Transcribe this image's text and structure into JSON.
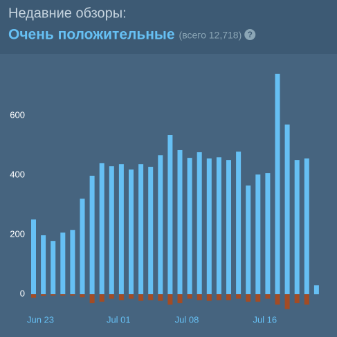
{
  "chart_data": {
    "type": "bar",
    "title": "Недавние обзоры:",
    "subtitle": "Очень положительные",
    "annotation": "(всего 12,718)",
    "help": "?",
    "categories": [
      "Jun 23",
      null,
      null,
      null,
      null,
      null,
      null,
      null,
      "Jul 01",
      null,
      null,
      null,
      null,
      null,
      null,
      "Jul 08",
      null,
      null,
      null,
      null,
      null,
      null,
      null,
      "Jul 16",
      null,
      null,
      null,
      null,
      null,
      null
    ],
    "series": [
      {
        "color": "#66c0f4",
        "values": [
          251,
          198,
          179,
          207,
          216,
          321,
          398,
          440,
          430,
          437,
          419,
          437,
          428,
          467,
          535,
          484,
          458,
          477,
          456,
          460,
          451,
          479,
          365,
          402,
          407,
          740,
          570,
          451,
          456,
          30
        ]
      },
      {
        "color": "#a34c25",
        "values": [
          -12,
          -6,
          -5,
          -5,
          -5,
          -10,
          -30,
          -25,
          -15,
          -20,
          -15,
          -22,
          -20,
          -22,
          -35,
          -30,
          -15,
          -20,
          -22,
          -20,
          -20,
          -15,
          -25,
          -25,
          -15,
          -35,
          -50,
          -30,
          -35,
          0
        ]
      }
    ],
    "ylim": [
      -60,
      800
    ],
    "yticks": [
      0,
      200,
      400,
      600
    ],
    "grid": false
  }
}
